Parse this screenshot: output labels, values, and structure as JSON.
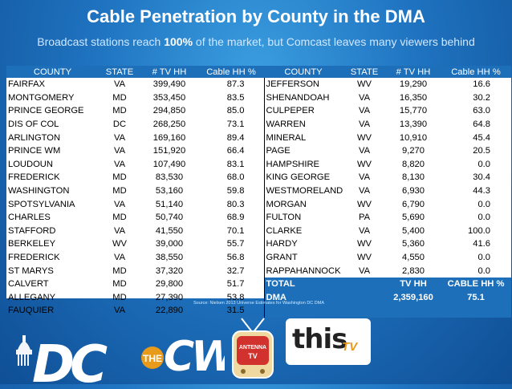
{
  "header": {
    "title": "Cable Penetration by County in the DMA",
    "subtitle_pre": "Broadcast stations reach ",
    "subtitle_bold": "100%",
    "subtitle_post": " of the market, but Comcast leaves many viewers behind"
  },
  "table": {
    "columns": [
      "COUNTY",
      "STATE",
      "# TV HH",
      "Cable HH %",
      "COUNTY",
      "STATE",
      "# TV HH",
      "Cable HH %"
    ],
    "left_rows": [
      [
        "FAIRFAX",
        "VA",
        "399,490",
        "87.3"
      ],
      [
        "MONTGOMERY",
        "MD",
        "353,450",
        "83.5"
      ],
      [
        "PRINCE GEORGE",
        "MD",
        "294,850",
        "85.0"
      ],
      [
        "DIS OF COL",
        "DC",
        "268,250",
        "73.1"
      ],
      [
        "ARLINGTON",
        "VA",
        "169,160",
        "89.4"
      ],
      [
        "PRINCE WM",
        "VA",
        "151,920",
        "66.4"
      ],
      [
        "LOUDOUN",
        "VA",
        "107,490",
        "83.1"
      ],
      [
        "FREDERICK",
        "MD",
        "83,530",
        "68.0"
      ],
      [
        "WASHINGTON",
        "MD",
        "53,160",
        "59.8"
      ],
      [
        "SPOTSYLVANIA",
        "VA",
        "51,140",
        "80.3"
      ],
      [
        "CHARLES",
        "MD",
        "50,740",
        "68.9"
      ],
      [
        "STAFFORD",
        "VA",
        "41,550",
        "70.1"
      ],
      [
        "BERKELEY",
        "WV",
        "39,000",
        "55.7"
      ],
      [
        "FREDERICK",
        "VA",
        "38,550",
        "56.8"
      ],
      [
        "ST MARYS",
        "MD",
        "37,320",
        "32.7"
      ],
      [
        "CALVERT",
        "MD",
        "29,800",
        "51.7"
      ],
      [
        "ALLEGANY",
        "MD",
        "27,390",
        "53.8"
      ],
      [
        "FAUQUIER",
        "VA",
        "22,890",
        "31.5"
      ]
    ],
    "right_rows": [
      [
        "JEFFERSON",
        "WV",
        "19,290",
        "16.6"
      ],
      [
        "SHENANDOAH",
        "VA",
        "16,350",
        "30.2"
      ],
      [
        "CULPEPER",
        "VA",
        "15,770",
        "63.0"
      ],
      [
        "WARREN",
        "VA",
        "13,390",
        "64.8"
      ],
      [
        "MINERAL",
        "WV",
        "10,910",
        "45.4"
      ],
      [
        "PAGE",
        "VA",
        "9,270",
        "20.5"
      ],
      [
        "HAMPSHIRE",
        "WV",
        "8,820",
        "0.0"
      ],
      [
        "KING GEORGE",
        "VA",
        "8,130",
        "30.4"
      ],
      [
        "WESTMORELAND",
        "VA",
        "6,930",
        "44.3"
      ],
      [
        "MORGAN",
        "WV",
        "6,790",
        "0.0"
      ],
      [
        "FULTON",
        "PA",
        "5,690",
        "0.0"
      ],
      [
        "CLARKE",
        "VA",
        "5,400",
        "100.0"
      ],
      [
        "HARDY",
        "WV",
        "5,360",
        "41.6"
      ],
      [
        "GRANT",
        "WV",
        "4,550",
        "0.0"
      ],
      [
        "RAPPAHANNOCK",
        "VA",
        "2,830",
        "0.0"
      ]
    ],
    "total_row": [
      "TOTAL",
      "",
      "TV HH",
      "CABLE HH %"
    ],
    "dma_row": [
      "DMA",
      "",
      "2,359,160",
      "75.1"
    ]
  },
  "source": "Source: Nielsen 2013 Universe Estimates for Washington DC DMA",
  "logos": {
    "dc_logo_text": "DC",
    "the_text": "THE",
    "cw_text": "CW",
    "antenna_text_1": "ANTENNA",
    "antenna_text_2": "TV",
    "this_text": "this",
    "this_tv_text": "TV"
  },
  "colors": {
    "background": "#1f73c0",
    "header_bar": "#1c6fb8",
    "accent_orange": "#e89a1a"
  }
}
